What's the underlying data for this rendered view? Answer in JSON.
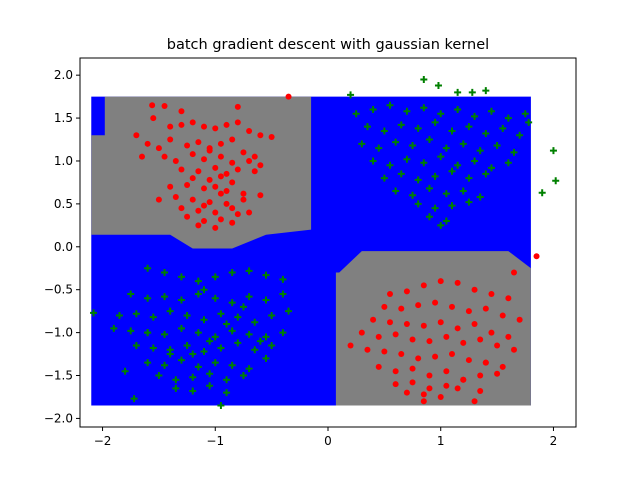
{
  "chart_data": {
    "type": "scatter",
    "title": "batch gradient descent with gaussian kernel",
    "xlabel": "",
    "ylabel": "",
    "xlim": [
      -2.2,
      2.2
    ],
    "ylim": [
      -2.1,
      2.2
    ],
    "x_ticks": [
      -2,
      -1,
      0,
      1,
      2
    ],
    "x_tick_labels": [
      "−2",
      "−1",
      "0",
      "1",
      "2"
    ],
    "y_ticks": [
      -2.0,
      -1.5,
      -1.0,
      -0.5,
      0.0,
      0.5,
      1.0,
      1.5,
      2.0
    ],
    "y_tick_labels": [
      "−2.0",
      "−1.5",
      "−1.0",
      "−0.5",
      "0.0",
      "0.5",
      "1.0",
      "1.5",
      "2.0"
    ],
    "grid": false,
    "colors": {
      "decision_negative": "#0000ff",
      "decision_positive": "#808080",
      "class_red": "#ff0000",
      "class_green": "#008000"
    },
    "decision_regions": [
      {
        "class": "blue",
        "polygon": [
          [
            -2.1,
            -1.85
          ],
          [
            1.8,
            -1.85
          ],
          [
            1.8,
            1.75
          ],
          [
            -2.1,
            1.75
          ]
        ]
      },
      {
        "class": "gray",
        "polygon": [
          [
            -1.98,
            1.75
          ],
          [
            -0.15,
            1.75
          ],
          [
            -0.15,
            0.2
          ],
          [
            -0.55,
            0.14
          ],
          [
            -0.85,
            -0.02
          ],
          [
            -1.2,
            -0.02
          ],
          [
            -1.4,
            0.14
          ],
          [
            -2.1,
            0.14
          ],
          [
            -2.1,
            1.3
          ],
          [
            -1.98,
            1.3
          ]
        ]
      },
      {
        "class": "gray",
        "polygon": [
          [
            0.1,
            -0.3
          ],
          [
            0.3,
            -0.05
          ],
          [
            1.6,
            -0.05
          ],
          [
            1.8,
            -0.25
          ],
          [
            1.8,
            -1.85
          ],
          [
            0.07,
            -1.85
          ],
          [
            0.07,
            -0.3
          ]
        ]
      }
    ],
    "series": [
      {
        "marker": "dot",
        "color": "red",
        "x": [
          -1.56,
          -1.45,
          -1.3,
          -0.8,
          -0.35,
          -1.7,
          -1.65,
          -1.55,
          -1.4,
          -1.3,
          -1.2,
          -1.1,
          -1.0,
          -0.9,
          -0.8,
          -0.7,
          -0.6,
          -0.5,
          -1.6,
          -1.5,
          -1.4,
          -1.25,
          -1.15,
          -1.05,
          -0.95,
          -0.85,
          -0.75,
          -0.65,
          -1.45,
          -1.35,
          -1.2,
          -1.1,
          -0.95,
          -0.85,
          -0.7,
          -0.6,
          -1.3,
          -1.15,
          -1.0,
          -0.9,
          -0.8,
          -0.65,
          -1.2,
          -1.05,
          -0.95,
          -0.85,
          -1.4,
          -1.25,
          -1.1,
          -1.0,
          -0.9,
          -0.75,
          -0.6,
          -1.5,
          -1.35,
          -1.2,
          -1.05,
          -0.9,
          -0.75,
          -1.3,
          -1.15,
          -1.0,
          -0.85,
          -0.7,
          -1.25,
          -1.1,
          -0.95,
          -0.8,
          -1.15,
          -1.0,
          -0.85,
          -1.1,
          -0.95,
          -1.05,
          1.85,
          0.55,
          0.7,
          0.85,
          1.0,
          1.15,
          1.3,
          1.45,
          1.6,
          0.5,
          0.65,
          0.8,
          0.95,
          1.1,
          1.25,
          1.4,
          1.55,
          1.7,
          0.4,
          0.55,
          0.7,
          0.85,
          1.0,
          1.15,
          1.3,
          1.45,
          1.6,
          0.3,
          0.45,
          0.6,
          0.75,
          0.9,
          1.05,
          1.2,
          1.35,
          1.5,
          1.65,
          0.35,
          0.5,
          0.65,
          0.8,
          0.95,
          1.1,
          1.25,
          1.4,
          1.55,
          0.45,
          0.6,
          0.75,
          0.9,
          1.05,
          1.2,
          1.35,
          1.5,
          0.6,
          0.75,
          0.9,
          1.05,
          1.2,
          1.35,
          0.7,
          0.85,
          1.0,
          1.15,
          1.3,
          0.2,
          1.4,
          0.85,
          1.65
        ],
        "y": [
          1.65,
          1.64,
          1.58,
          1.63,
          1.75,
          1.3,
          1.05,
          1.5,
          1.4,
          1.42,
          1.45,
          1.4,
          1.38,
          1.42,
          1.45,
          1.35,
          1.3,
          1.28,
          1.2,
          1.15,
          1.25,
          1.18,
          1.22,
          1.15,
          1.2,
          1.25,
          1.1,
          1.05,
          1.05,
          1.0,
          1.08,
          1.02,
          1.05,
          0.98,
          1.0,
          0.95,
          0.9,
          0.88,
          0.92,
          0.85,
          0.9,
          0.88,
          0.8,
          0.78,
          0.82,
          0.75,
          0.7,
          0.72,
          0.68,
          0.7,
          0.65,
          0.62,
          0.6,
          0.55,
          0.58,
          0.55,
          0.52,
          0.5,
          0.55,
          0.45,
          0.42,
          0.4,
          0.45,
          0.4,
          0.35,
          0.3,
          0.32,
          0.38,
          0.25,
          0.22,
          0.28,
          0.48,
          0.62,
          1.12,
          -0.11,
          -0.55,
          -0.52,
          -0.45,
          -0.4,
          -0.42,
          -0.5,
          -0.55,
          -0.6,
          -0.7,
          -0.72,
          -0.68,
          -0.65,
          -0.7,
          -0.75,
          -0.72,
          -0.8,
          -0.85,
          -0.85,
          -0.88,
          -0.9,
          -0.92,
          -0.88,
          -0.95,
          -0.9,
          -1.0,
          -1.05,
          -1.0,
          -1.05,
          -1.02,
          -1.08,
          -1.1,
          -1.05,
          -1.12,
          -1.08,
          -1.15,
          -1.2,
          -1.2,
          -1.22,
          -1.25,
          -1.3,
          -1.28,
          -1.25,
          -1.32,
          -1.35,
          -1.4,
          -1.4,
          -1.45,
          -1.42,
          -1.5,
          -1.45,
          -1.55,
          -1.5,
          -1.48,
          -1.6,
          -1.58,
          -1.65,
          -1.62,
          -1.55,
          -1.68,
          -1.7,
          -1.72,
          -1.75,
          -1.65,
          -1.8,
          -1.15,
          -1.35,
          -1.8,
          -0.3
        ]
      },
      {
        "marker": "plus",
        "color": "green",
        "x": [
          0.85,
          0.98,
          1.15,
          1.28,
          1.4,
          0.2,
          1.75,
          1.78,
          2.0,
          1.9,
          2.02,
          0.25,
          0.4,
          0.55,
          0.7,
          0.85,
          1.0,
          1.15,
          1.3,
          1.45,
          1.6,
          0.35,
          0.5,
          0.65,
          0.8,
          0.95,
          1.1,
          1.25,
          1.4,
          1.55,
          1.7,
          0.3,
          0.45,
          0.6,
          0.75,
          0.9,
          1.05,
          1.2,
          1.35,
          1.5,
          1.65,
          0.4,
          0.55,
          0.7,
          0.85,
          1.0,
          1.15,
          1.3,
          1.45,
          1.6,
          0.5,
          0.65,
          0.8,
          0.95,
          1.1,
          1.25,
          1.4,
          0.6,
          0.75,
          0.9,
          1.05,
          1.2,
          1.35,
          0.8,
          0.95,
          1.1,
          1.25,
          0.9,
          1.05,
          1.0,
          -2.08,
          -0.95,
          -1.8,
          -1.72,
          -1.6,
          -1.45,
          -1.3,
          -1.15,
          -1.0,
          -0.85,
          -0.7,
          -0.55,
          -0.4,
          -1.75,
          -1.6,
          -1.45,
          -1.3,
          -1.15,
          -1.0,
          -0.85,
          -0.7,
          -0.55,
          -0.4,
          -1.85,
          -1.7,
          -1.55,
          -1.4,
          -1.25,
          -1.1,
          -0.95,
          -0.8,
          -0.65,
          -0.5,
          -0.35,
          -1.9,
          -1.75,
          -1.6,
          -1.45,
          -1.3,
          -1.15,
          -1.0,
          -0.85,
          -0.7,
          -0.55,
          -0.4,
          -1.7,
          -1.55,
          -1.4,
          -1.25,
          -1.1,
          -0.95,
          -0.8,
          -0.65,
          -0.5,
          -1.6,
          -1.45,
          -1.3,
          -1.15,
          -1.0,
          -0.85,
          -0.7,
          -0.55,
          -1.5,
          -1.35,
          -1.2,
          -1.05,
          -0.9,
          -0.75,
          -1.35,
          -1.2,
          -1.05,
          -0.9,
          -1.2,
          -1.05,
          -0.9,
          -0.75,
          -1.6,
          -0.6,
          -1.1,
          -1.4
        ],
        "y": [
          1.95,
          1.88,
          1.8,
          1.8,
          1.82,
          1.77,
          1.55,
          1.45,
          1.12,
          0.63,
          0.77,
          1.55,
          1.6,
          1.65,
          1.58,
          1.62,
          1.55,
          1.6,
          1.52,
          1.58,
          1.5,
          1.4,
          1.35,
          1.42,
          1.38,
          1.45,
          1.35,
          1.4,
          1.32,
          1.38,
          1.3,
          1.2,
          1.15,
          1.22,
          1.18,
          1.25,
          1.15,
          1.2,
          1.12,
          1.18,
          1.1,
          1.0,
          0.95,
          1.02,
          0.98,
          1.05,
          0.95,
          1.0,
          0.92,
          0.98,
          0.8,
          0.85,
          0.78,
          0.82,
          0.88,
          0.8,
          0.85,
          0.65,
          0.6,
          0.68,
          0.62,
          0.65,
          0.58,
          0.5,
          0.45,
          0.48,
          0.52,
          0.35,
          0.3,
          0.25,
          -0.77,
          -1.85,
          -1.45,
          -1.77,
          -0.25,
          -0.3,
          -0.35,
          -0.4,
          -0.35,
          -0.3,
          -0.28,
          -0.33,
          -0.38,
          -0.55,
          -0.6,
          -0.58,
          -0.62,
          -0.55,
          -0.6,
          -0.65,
          -0.58,
          -0.62,
          -0.55,
          -0.8,
          -0.78,
          -0.82,
          -0.75,
          -0.8,
          -0.85,
          -0.78,
          -0.82,
          -0.88,
          -0.8,
          -0.75,
          -0.95,
          -0.98,
          -1.0,
          -1.02,
          -0.95,
          -1.0,
          -1.05,
          -0.98,
          -1.02,
          -1.05,
          -1.0,
          -1.15,
          -1.18,
          -1.2,
          -1.15,
          -1.22,
          -1.18,
          -1.12,
          -1.2,
          -1.15,
          -1.35,
          -1.38,
          -1.32,
          -1.4,
          -1.35,
          -1.38,
          -1.42,
          -1.3,
          -1.5,
          -1.55,
          -1.52,
          -1.48,
          -1.55,
          -1.5,
          -1.65,
          -1.68,
          -1.62,
          -1.7,
          -1.25,
          -1.1,
          -0.9,
          -0.7,
          -1.0,
          -1.1,
          -0.5,
          -1.25
        ]
      }
    ]
  }
}
